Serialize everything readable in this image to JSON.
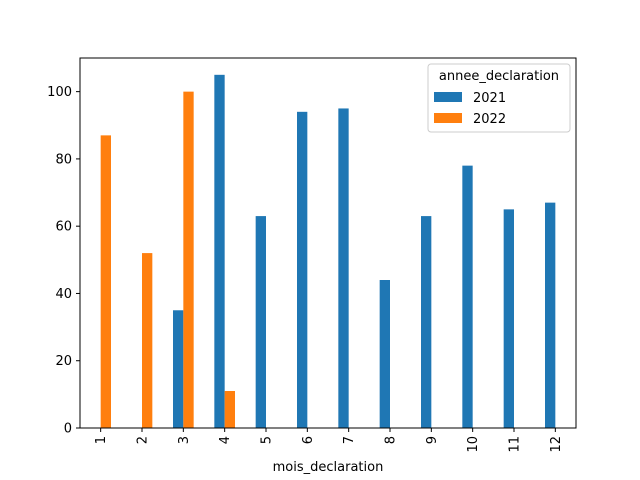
{
  "chart_data": {
    "type": "bar",
    "title": "",
    "xlabel": "mois_declaration",
    "ylabel": "",
    "categories": [
      "1",
      "2",
      "3",
      "4",
      "5",
      "6",
      "7",
      "8",
      "9",
      "10",
      "11",
      "12"
    ],
    "series": [
      {
        "name": "2021",
        "color": "#1f77b4",
        "values": [
          0,
          0,
          35,
          105,
          63,
          94,
          95,
          44,
          63,
          78,
          65,
          67
        ]
      },
      {
        "name": "2022",
        "color": "#ff7f0e",
        "values": [
          87,
          52,
          100,
          11,
          0,
          0,
          0,
          0,
          0,
          0,
          0,
          0
        ]
      }
    ],
    "ylim": [
      0,
      110
    ],
    "yticks": [
      0,
      20,
      40,
      60,
      80,
      100
    ],
    "legend": {
      "title": "annee_declaration",
      "position": "top-right"
    },
    "grid": false
  }
}
